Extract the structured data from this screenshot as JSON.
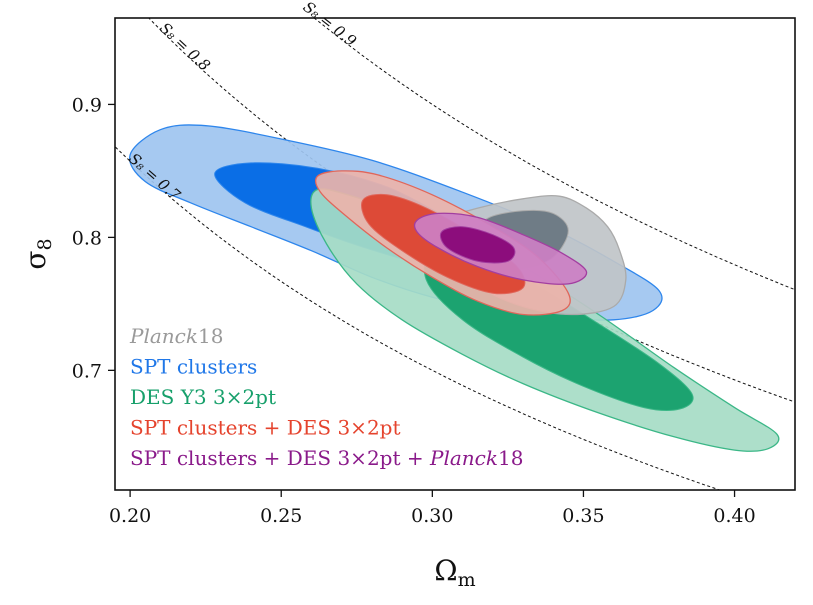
{
  "chart_data": {
    "type": "contour",
    "xlabel": "Ω_m",
    "ylabel": "σ_8",
    "xlim": [
      0.195,
      0.42
    ],
    "ylim": [
      0.61,
      0.965
    ],
    "x_ticks": [
      0.2,
      0.25,
      0.3,
      0.35,
      0.4
    ],
    "x_tick_labels": [
      "0.20",
      "0.25",
      "0.30",
      "0.35",
      "0.40"
    ],
    "y_ticks": [
      0.7,
      0.8,
      0.9
    ],
    "y_tick_labels": [
      "0.7",
      "0.8",
      "0.9"
    ],
    "s8_lines": [
      {
        "value": 0.7,
        "label": "S₈ = 0.7"
      },
      {
        "value": 0.8,
        "label": "S₈ = 0.8"
      },
      {
        "value": 0.9,
        "label": "S₈ = 0.9"
      }
    ],
    "series": [
      {
        "name": "SPT clusters",
        "label": "SPT clusters",
        "color": "#1f77e8",
        "fill_68": "#0a6ee6",
        "fill_95": "#9ec4f0",
        "edge": "#2e86ec",
        "contour_95": [
          [
            0.2,
            0.862
          ],
          [
            0.21,
            0.881
          ],
          [
            0.225,
            0.884
          ],
          [
            0.25,
            0.874
          ],
          [
            0.28,
            0.858
          ],
          [
            0.31,
            0.834
          ],
          [
            0.34,
            0.806
          ],
          [
            0.36,
            0.782
          ],
          [
            0.375,
            0.76
          ],
          [
            0.373,
            0.745
          ],
          [
            0.36,
            0.738
          ],
          [
            0.34,
            0.74
          ],
          [
            0.32,
            0.746
          ],
          [
            0.3,
            0.755
          ],
          [
            0.28,
            0.77
          ],
          [
            0.26,
            0.79
          ],
          [
            0.24,
            0.808
          ],
          [
            0.22,
            0.826
          ],
          [
            0.205,
            0.842
          ]
        ],
        "contour_68": [
          [
            0.228,
            0.848
          ],
          [
            0.24,
            0.856
          ],
          [
            0.262,
            0.852
          ],
          [
            0.285,
            0.838
          ],
          [
            0.305,
            0.815
          ],
          [
            0.322,
            0.798
          ],
          [
            0.33,
            0.788
          ],
          [
            0.318,
            0.779
          ],
          [
            0.298,
            0.78
          ],
          [
            0.278,
            0.792
          ],
          [
            0.258,
            0.808
          ],
          [
            0.238,
            0.826
          ]
        ]
      },
      {
        "name": "DES Y3 3x2pt",
        "label": "DES Y3 3×2pt",
        "color": "#17a06b",
        "fill_68": "#1ca370",
        "fill_95": "#a6dcc5",
        "edge": "#3bb787",
        "contour_95": [
          [
            0.262,
            0.836
          ],
          [
            0.272,
            0.832
          ],
          [
            0.29,
            0.818
          ],
          [
            0.31,
            0.8
          ],
          [
            0.33,
            0.778
          ],
          [
            0.355,
            0.742
          ],
          [
            0.38,
            0.702
          ],
          [
            0.4,
            0.672
          ],
          [
            0.414,
            0.652
          ],
          [
            0.411,
            0.641
          ],
          [
            0.4,
            0.64
          ],
          [
            0.38,
            0.65
          ],
          [
            0.355,
            0.668
          ],
          [
            0.33,
            0.69
          ],
          [
            0.31,
            0.712
          ],
          [
            0.29,
            0.738
          ],
          [
            0.275,
            0.765
          ],
          [
            0.265,
            0.795
          ],
          [
            0.26,
            0.822
          ]
        ],
        "contour_68": [
          [
            0.3,
            0.795
          ],
          [
            0.31,
            0.79
          ],
          [
            0.33,
            0.77
          ],
          [
            0.355,
            0.735
          ],
          [
            0.375,
            0.705
          ],
          [
            0.386,
            0.682
          ],
          [
            0.382,
            0.671
          ],
          [
            0.37,
            0.672
          ],
          [
            0.35,
            0.688
          ],
          [
            0.33,
            0.71
          ],
          [
            0.31,
            0.738
          ],
          [
            0.298,
            0.768
          ]
        ]
      },
      {
        "name": "SPT clusters + DES 3x2pt",
        "label": "SPT clusters + DES 3×2pt",
        "color": "#e5432d",
        "fill_68": "#dd4a37",
        "fill_95": "#ecb3aa",
        "edge": "#e0665a",
        "contour_95": [
          [
            0.262,
            0.846
          ],
          [
            0.27,
            0.85
          ],
          [
            0.282,
            0.847
          ],
          [
            0.3,
            0.832
          ],
          [
            0.32,
            0.808
          ],
          [
            0.335,
            0.785
          ],
          [
            0.345,
            0.758
          ],
          [
            0.343,
            0.745
          ],
          [
            0.33,
            0.742
          ],
          [
            0.315,
            0.752
          ],
          [
            0.3,
            0.77
          ],
          [
            0.285,
            0.792
          ],
          [
            0.272,
            0.815
          ],
          [
            0.263,
            0.834
          ]
        ],
        "contour_68": [
          [
            0.277,
            0.828
          ],
          [
            0.285,
            0.832
          ],
          [
            0.298,
            0.822
          ],
          [
            0.315,
            0.8
          ],
          [
            0.328,
            0.778
          ],
          [
            0.33,
            0.762
          ],
          [
            0.32,
            0.758
          ],
          [
            0.305,
            0.77
          ],
          [
            0.29,
            0.79
          ],
          [
            0.279,
            0.81
          ]
        ]
      },
      {
        "name": "SPT clusters + DES 3x2pt + Planck18",
        "label": "SPT clusters + DES 3×2pt + Planck18",
        "color": "#8a1a8a",
        "fill_68": "#8c0d7c",
        "fill_95": "#cc7fc4",
        "edge": "#a23ea0",
        "contour_95": [
          [
            0.295,
            0.813
          ],
          [
            0.302,
            0.818
          ],
          [
            0.315,
            0.815
          ],
          [
            0.33,
            0.802
          ],
          [
            0.343,
            0.788
          ],
          [
            0.351,
            0.774
          ],
          [
            0.345,
            0.765
          ],
          [
            0.33,
            0.768
          ],
          [
            0.315,
            0.778
          ],
          [
            0.302,
            0.792
          ],
          [
            0.295,
            0.804
          ]
        ],
        "contour_68": [
          [
            0.303,
            0.804
          ],
          [
            0.31,
            0.808
          ],
          [
            0.32,
            0.802
          ],
          [
            0.327,
            0.792
          ],
          [
            0.325,
            0.782
          ],
          [
            0.315,
            0.782
          ],
          [
            0.305,
            0.792
          ]
        ]
      },
      {
        "name": "Planck18",
        "label_italic": "Planck",
        "label_suffix": "18",
        "color": "#9a9a9a",
        "fill_68": "#6f7c86",
        "fill_95": "#c0c4c8",
        "edge": "#aaaaaa",
        "contour_95": [
          [
            0.302,
            0.812
          ],
          [
            0.315,
            0.822
          ],
          [
            0.33,
            0.829
          ],
          [
            0.342,
            0.831
          ],
          [
            0.351,
            0.822
          ],
          [
            0.358,
            0.808
          ],
          [
            0.362,
            0.79
          ],
          [
            0.364,
            0.768
          ],
          [
            0.36,
            0.748
          ],
          [
            0.346,
            0.742
          ],
          [
            0.33,
            0.748
          ],
          [
            0.316,
            0.762
          ],
          [
            0.306,
            0.78
          ],
          [
            0.3,
            0.798
          ]
        ],
        "contour_68": [
          [
            0.318,
            0.814
          ],
          [
            0.33,
            0.82
          ],
          [
            0.34,
            0.818
          ],
          [
            0.345,
            0.805
          ],
          [
            0.34,
            0.785
          ],
          [
            0.33,
            0.777
          ],
          [
            0.32,
            0.782
          ],
          [
            0.314,
            0.798
          ]
        ]
      }
    ]
  },
  "legend": [
    {
      "parts": [
        {
          "text": "Planck",
          "italic": true
        },
        {
          "text": "18",
          "italic": false
        }
      ],
      "color": "#9a9a9a"
    },
    {
      "parts": [
        {
          "text": "SPT clusters",
          "italic": false
        }
      ],
      "color": "#1f77e8"
    },
    {
      "parts": [
        {
          "text": "DES Y3 3×2pt",
          "italic": false
        }
      ],
      "color": "#17a06b"
    },
    {
      "parts": [
        {
          "text": "SPT clusters + DES 3×2pt",
          "italic": false
        }
      ],
      "color": "#e5432d"
    },
    {
      "parts": [
        {
          "text": "SPT clusters + DES 3×2pt + ",
          "italic": false
        },
        {
          "text": "Planck",
          "italic": true
        },
        {
          "text": "18",
          "italic": false
        }
      ],
      "color": "#8a1a8a"
    }
  ]
}
